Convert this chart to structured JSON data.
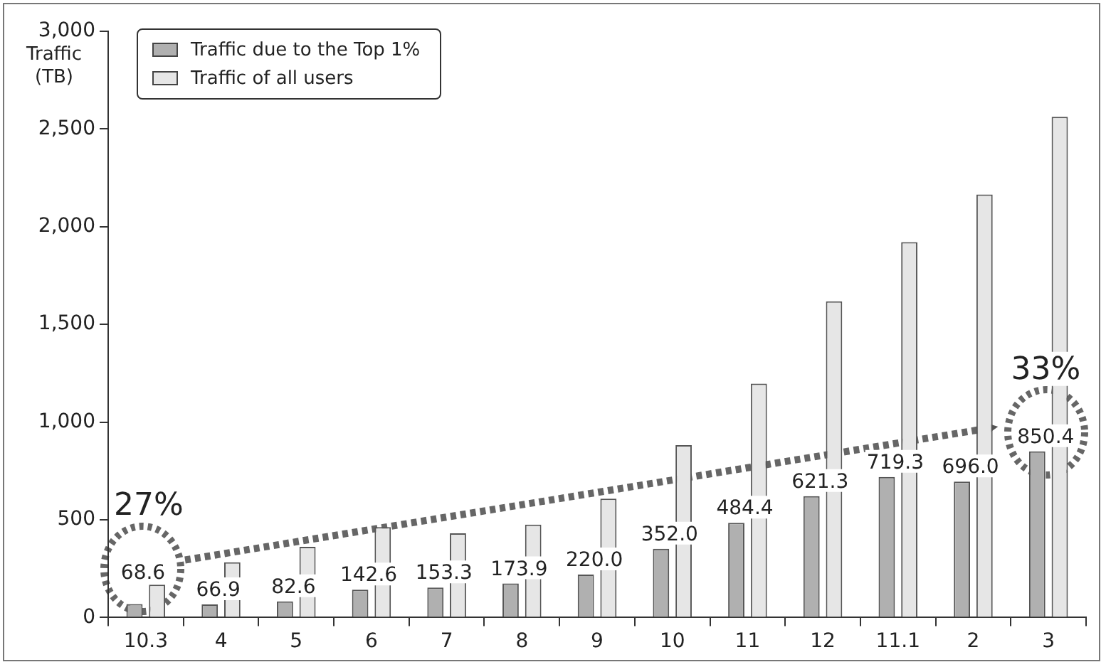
{
  "chart_data": {
    "type": "bar",
    "ylabel": "Traffic\n(TB)",
    "categories": [
      "10.3",
      "4",
      "5",
      "6",
      "7",
      "8",
      "9",
      "10",
      "11",
      "12",
      "11.1",
      "2",
      "3"
    ],
    "series": [
      {
        "name": "Traffic due to the Top 1%",
        "color": "#b0b0b0",
        "values": [
          68.6,
          66.9,
          82.6,
          142.6,
          153.3,
          173.9,
          220.0,
          352.0,
          484.4,
          621.3,
          719.3,
          696.0,
          850.4
        ],
        "value_labels": [
          "68.6",
          "66.9",
          "82.6",
          "142.6",
          "153.3",
          "173.9",
          "220.0",
          "352.0",
          "484.4",
          "621.3",
          "719.3",
          "696.0",
          "850.4"
        ]
      },
      {
        "name": "Traffic of all users",
        "color": "#e6e6e6",
        "values": [
          168,
          283,
          362,
          463,
          431,
          475,
          608,
          882,
          1197,
          1618,
          1921,
          2165,
          2562
        ]
      }
    ],
    "ylim": [
      0,
      3000
    ],
    "yticks": [
      {
        "value": 0,
        "label": "0"
      },
      {
        "value": 500,
        "label": "500"
      },
      {
        "value": 1000,
        "label": "1,000"
      },
      {
        "value": 1500,
        "label": "1,500"
      },
      {
        "value": 2000,
        "label": "2,000"
      },
      {
        "value": 2500,
        "label": "2,500"
      },
      {
        "value": 3000,
        "label": "3,000"
      }
    ],
    "grid": false,
    "legend": "top left",
    "annotations": [
      "27%",
      "33%"
    ]
  }
}
